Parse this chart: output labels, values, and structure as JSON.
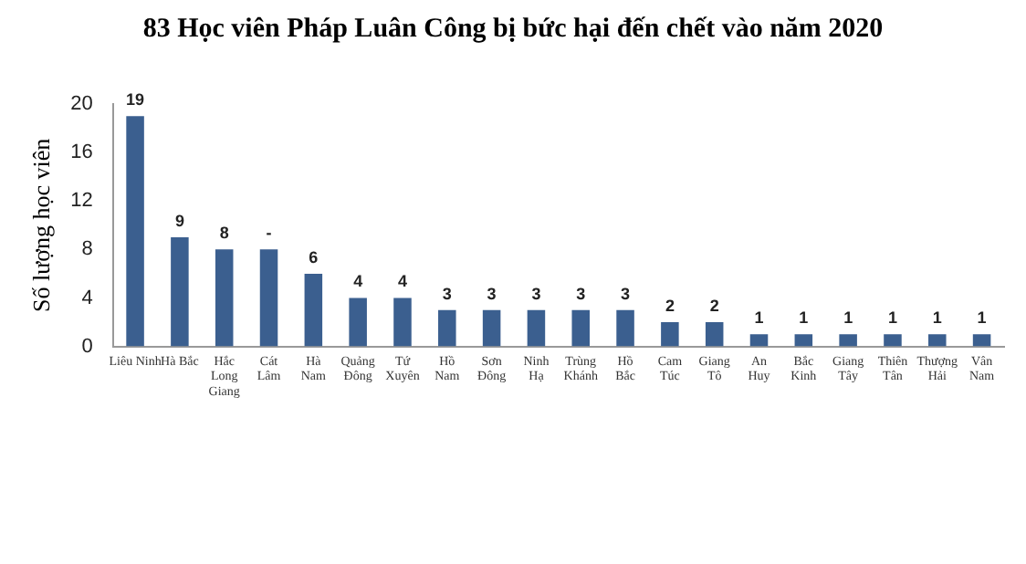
{
  "chart_data": {
    "type": "bar",
    "title": "83 Học viên Pháp Luân Công bị bức hại đến chết vào năm 2020",
    "ylabel": "Số lượng học viên",
    "categories": [
      "Liêu Ninh",
      "Hà Bắc",
      "Hắc\nLong\nGiang",
      "Cát\nLâm",
      "Hà\nNam",
      "Quảng\nĐông",
      "Tứ\nXuyên",
      "Hồ\nNam",
      "Sơn\nĐông",
      "Ninh\nHạ",
      "Trùng\nKhánh",
      "Hồ\nBắc",
      "Cam\nTúc",
      "Giang\nTô",
      "An\nHuy",
      "Bắc\nKinh",
      "Giang\nTây",
      "Thiên\nTân",
      "Thượng\nHải",
      "Vân\nNam"
    ],
    "values": [
      19,
      9,
      8,
      8,
      6,
      4,
      4,
      3,
      3,
      3,
      3,
      3,
      2,
      2,
      1,
      1,
      1,
      1,
      1,
      1
    ],
    "value_labels": [
      "19",
      "9",
      "8",
      "-",
      "6",
      "4",
      "4",
      "3",
      "3",
      "3",
      "3",
      "3",
      "2",
      "2",
      "1",
      "1",
      "1",
      "1",
      "1",
      "1"
    ],
    "color": "#3b5f8f",
    "ylim": [
      0,
      20
    ],
    "yticks": [
      0,
      4,
      8,
      12,
      16,
      20
    ],
    "grid": false,
    "legend": false
  }
}
